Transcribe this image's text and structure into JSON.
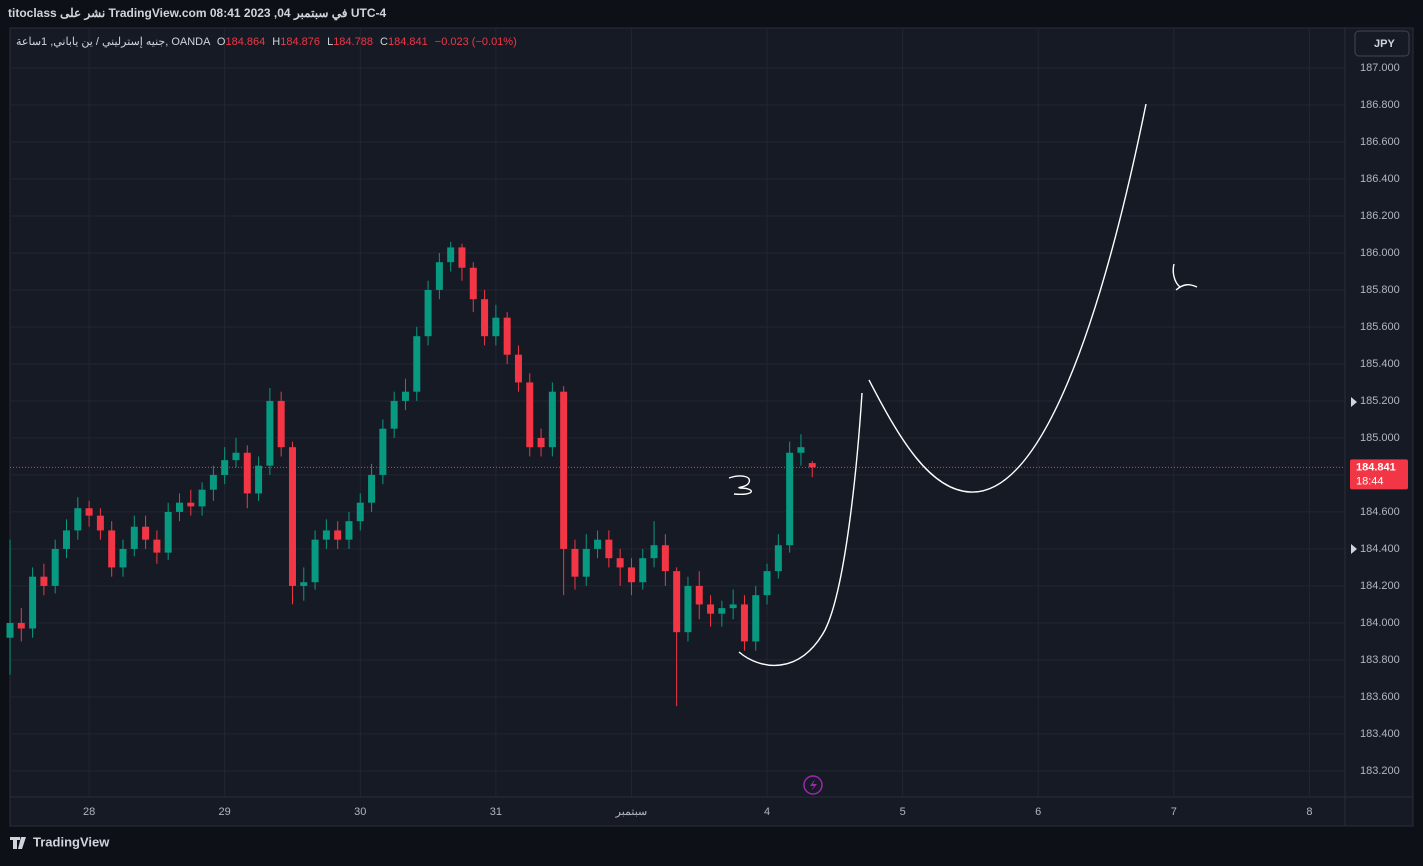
{
  "header": "titoclass نشر على TradingView.com 08:41 2023 ,04 في سبتمبر UTC-4",
  "chart_data": {
    "type": "candlestick",
    "legend": {
      "symbol": "جنيه إسترليني / ين ياباني, 1ساعة, OANDA",
      "o_label": "O",
      "o": "184.864",
      "h_label": "H",
      "h": "184.876",
      "l_label": "L",
      "l": "184.788",
      "c_label": "C",
      "c": "184.841",
      "change": "−0.023 (−0.01%)"
    },
    "currency": "JPY",
    "countdown": "18:44",
    "up_color": "#089981",
    "down_color": "#f23645",
    "grid": true,
    "xlim": [
      -14.0,
      222.3
    ],
    "xticks": [
      {
        "value": 0,
        "label": "28"
      },
      {
        "value": 24,
        "label": "29"
      },
      {
        "value": 48,
        "label": "30"
      },
      {
        "value": 72,
        "label": "31"
      },
      {
        "value": 96,
        "label": "سبتمبر"
      },
      {
        "value": 120,
        "label": "4"
      },
      {
        "value": 144,
        "label": "5"
      },
      {
        "value": 168,
        "label": "6"
      },
      {
        "value": 192,
        "label": "7"
      },
      {
        "value": 216,
        "label": "8"
      }
    ],
    "ylim": [
      183.059,
      187.216
    ],
    "yticks": [
      {
        "value": 183.2,
        "label": "183.200"
      },
      {
        "value": 183.4,
        "label": "183.400"
      },
      {
        "value": 183.6,
        "label": "183.600"
      },
      {
        "value": 183.8,
        "label": "183.800"
      },
      {
        "value": 184.0,
        "label": "184.000"
      },
      {
        "value": 184.2,
        "label": "184.200"
      },
      {
        "value": 184.4,
        "label": "184.400"
      },
      {
        "value": 184.6,
        "label": "184.600"
      },
      {
        "value": 184.8,
        "label": "184.800"
      },
      {
        "value": 185.0,
        "label": "185.000"
      },
      {
        "value": 185.2,
        "label": "185.200"
      },
      {
        "value": 185.4,
        "label": "185.400"
      },
      {
        "value": 185.6,
        "label": "185.600"
      },
      {
        "value": 185.8,
        "label": "185.800"
      },
      {
        "value": 186.0,
        "label": "186.000"
      },
      {
        "value": 186.2,
        "label": "186.200"
      },
      {
        "value": 186.4,
        "label": "186.400"
      },
      {
        "value": 186.6,
        "label": "186.600"
      },
      {
        "value": 186.8,
        "label": "186.800"
      },
      {
        "value": 187.0,
        "label": "187.000"
      }
    ],
    "x": [
      -14,
      -12,
      -10,
      -8,
      -6,
      -4,
      -2,
      0,
      2,
      4,
      6,
      8,
      10,
      12,
      14,
      16,
      18,
      20,
      22,
      24,
      26,
      28,
      30,
      32,
      34,
      36,
      38,
      40,
      42,
      44,
      46,
      48,
      50,
      52,
      54,
      56,
      58,
      60,
      62,
      64,
      66,
      68,
      70,
      72,
      74,
      76,
      78,
      80,
      82,
      84,
      86,
      88,
      90,
      92,
      94,
      96,
      98,
      100,
      102,
      104,
      106,
      108,
      110,
      112,
      114,
      116,
      118,
      120,
      122,
      124,
      126,
      128
    ],
    "open": [
      183.92,
      184.0,
      183.97,
      184.25,
      184.2,
      184.4,
      184.5,
      184.62,
      184.58,
      184.5,
      184.3,
      184.4,
      184.52,
      184.45,
      184.38,
      184.6,
      184.65,
      184.63,
      184.72,
      184.8,
      184.88,
      184.92,
      184.7,
      184.85,
      185.2,
      184.95,
      184.2,
      184.22,
      184.45,
      184.5,
      184.45,
      184.55,
      184.65,
      184.8,
      185.05,
      185.2,
      185.25,
      185.55,
      185.8,
      185.95,
      186.03,
      185.92,
      185.75,
      185.55,
      185.65,
      185.45,
      185.3,
      185.0,
      184.95,
      185.25,
      184.4,
      184.25,
      184.4,
      184.45,
      184.35,
      184.3,
      184.22,
      184.35,
      184.42,
      184.28,
      183.95,
      184.2,
      184.1,
      184.05,
      184.08,
      184.1,
      183.9,
      184.15,
      184.28,
      184.42,
      184.92,
      184.864
    ],
    "high": [
      184.45,
      184.08,
      184.3,
      184.32,
      184.45,
      184.56,
      184.68,
      184.66,
      184.62,
      184.55,
      184.45,
      184.58,
      184.58,
      184.5,
      184.65,
      184.7,
      184.72,
      184.76,
      184.85,
      184.95,
      185.0,
      184.96,
      184.9,
      185.27,
      185.25,
      184.98,
      184.3,
      184.5,
      184.56,
      184.55,
      184.6,
      184.7,
      184.86,
      185.1,
      185.25,
      185.32,
      185.6,
      185.85,
      186.0,
      186.06,
      186.05,
      185.95,
      185.8,
      185.72,
      185.68,
      185.5,
      185.35,
      185.05,
      185.3,
      185.28,
      184.45,
      184.48,
      184.5,
      184.5,
      184.4,
      184.35,
      184.4,
      184.55,
      184.48,
      184.3,
      184.25,
      184.28,
      184.15,
      184.12,
      184.18,
      184.15,
      184.2,
      184.32,
      184.48,
      184.98,
      185.02,
      184.876
    ],
    "low": [
      183.72,
      183.9,
      183.92,
      184.15,
      184.16,
      184.35,
      184.45,
      184.52,
      184.45,
      184.25,
      184.25,
      184.36,
      184.4,
      184.32,
      184.34,
      184.55,
      184.58,
      184.58,
      184.66,
      184.75,
      184.84,
      184.62,
      184.66,
      184.8,
      184.9,
      184.1,
      184.12,
      184.18,
      184.4,
      184.4,
      184.4,
      184.5,
      184.6,
      184.75,
      185.0,
      185.15,
      185.2,
      185.5,
      185.75,
      185.9,
      185.85,
      185.68,
      185.5,
      185.5,
      185.4,
      185.25,
      184.9,
      184.9,
      184.9,
      184.15,
      184.18,
      184.2,
      184.35,
      184.3,
      184.2,
      184.15,
      184.18,
      184.3,
      184.2,
      183.55,
      183.9,
      184.02,
      183.98,
      183.98,
      184.02,
      183.85,
      183.85,
      184.1,
      184.24,
      184.38,
      184.85,
      184.788
    ],
    "close": [
      184.0,
      183.97,
      184.25,
      184.2,
      184.4,
      184.5,
      184.62,
      184.58,
      184.5,
      184.3,
      184.4,
      184.52,
      184.45,
      184.38,
      184.6,
      184.65,
      184.63,
      184.72,
      184.8,
      184.88,
      184.92,
      184.7,
      184.85,
      185.2,
      184.95,
      184.2,
      184.22,
      184.45,
      184.5,
      184.45,
      184.55,
      184.65,
      184.8,
      185.05,
      185.2,
      185.25,
      185.55,
      185.8,
      185.95,
      186.03,
      185.92,
      185.75,
      185.55,
      185.65,
      185.45,
      185.3,
      184.95,
      184.95,
      185.25,
      184.4,
      184.25,
      184.4,
      184.45,
      184.35,
      184.3,
      184.22,
      184.35,
      184.42,
      184.28,
      183.95,
      184.2,
      184.1,
      184.05,
      184.08,
      184.1,
      183.9,
      184.15,
      184.28,
      184.42,
      184.92,
      184.95,
      184.841
    ]
  },
  "footer": "TradingView"
}
